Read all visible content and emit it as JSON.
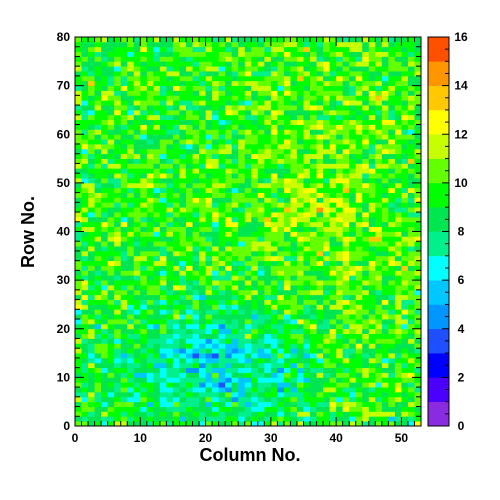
{
  "chart_data": {
    "type": "heatmap",
    "title": "",
    "xlabel": "Column No.",
    "ylabel": "Row No.",
    "n_columns": 53,
    "n_rows": 80,
    "xlim": [
      0,
      53
    ],
    "ylim": [
      0,
      80
    ],
    "x_ticks": [
      0,
      10,
      20,
      30,
      40,
      50
    ],
    "y_ticks": [
      0,
      10,
      20,
      30,
      40,
      50,
      60,
      70,
      80
    ],
    "z_range": [
      0,
      16
    ],
    "z_ticks": [
      0,
      2,
      4,
      6,
      8,
      10,
      12,
      14,
      16
    ],
    "color_scale": "rainbow",
    "color_bins": [
      {
        "from": 0,
        "to": 1,
        "color": "#8a2be2"
      },
      {
        "from": 1,
        "to": 2,
        "color": "#4b00ff"
      },
      {
        "from": 2,
        "to": 3,
        "color": "#0000ff"
      },
      {
        "from": 3,
        "to": 4,
        "color": "#1e50ff"
      },
      {
        "from": 4,
        "to": 5,
        "color": "#0096ff"
      },
      {
        "from": 5,
        "to": 6,
        "color": "#00c8ff"
      },
      {
        "from": 6,
        "to": 7,
        "color": "#00ffff"
      },
      {
        "from": 7,
        "to": 8,
        "color": "#00f08c"
      },
      {
        "from": 8,
        "to": 9,
        "color": "#00e650"
      },
      {
        "from": 9,
        "to": 10,
        "color": "#00ff00"
      },
      {
        "from": 10,
        "to": 11,
        "color": "#64ff00"
      },
      {
        "from": 11,
        "to": 12,
        "color": "#c8ff00"
      },
      {
        "from": 12,
        "to": 13,
        "color": "#ffff00"
      },
      {
        "from": 13,
        "to": 14,
        "color": "#ffc800"
      },
      {
        "from": 14,
        "to": 15,
        "color": "#ff9600"
      },
      {
        "from": 15,
        "to": 16,
        "color": "#ff5000"
      },
      {
        "from": 16,
        "to": 17,
        "color": "#ff0000"
      }
    ],
    "value_trend": {
      "base": 9.5,
      "low_region_center": [
        22,
        12
      ],
      "low_region_depth": 3,
      "high_region_center": [
        38,
        45
      ],
      "high_region_boost": 1.2,
      "spread": 2.6
    }
  }
}
